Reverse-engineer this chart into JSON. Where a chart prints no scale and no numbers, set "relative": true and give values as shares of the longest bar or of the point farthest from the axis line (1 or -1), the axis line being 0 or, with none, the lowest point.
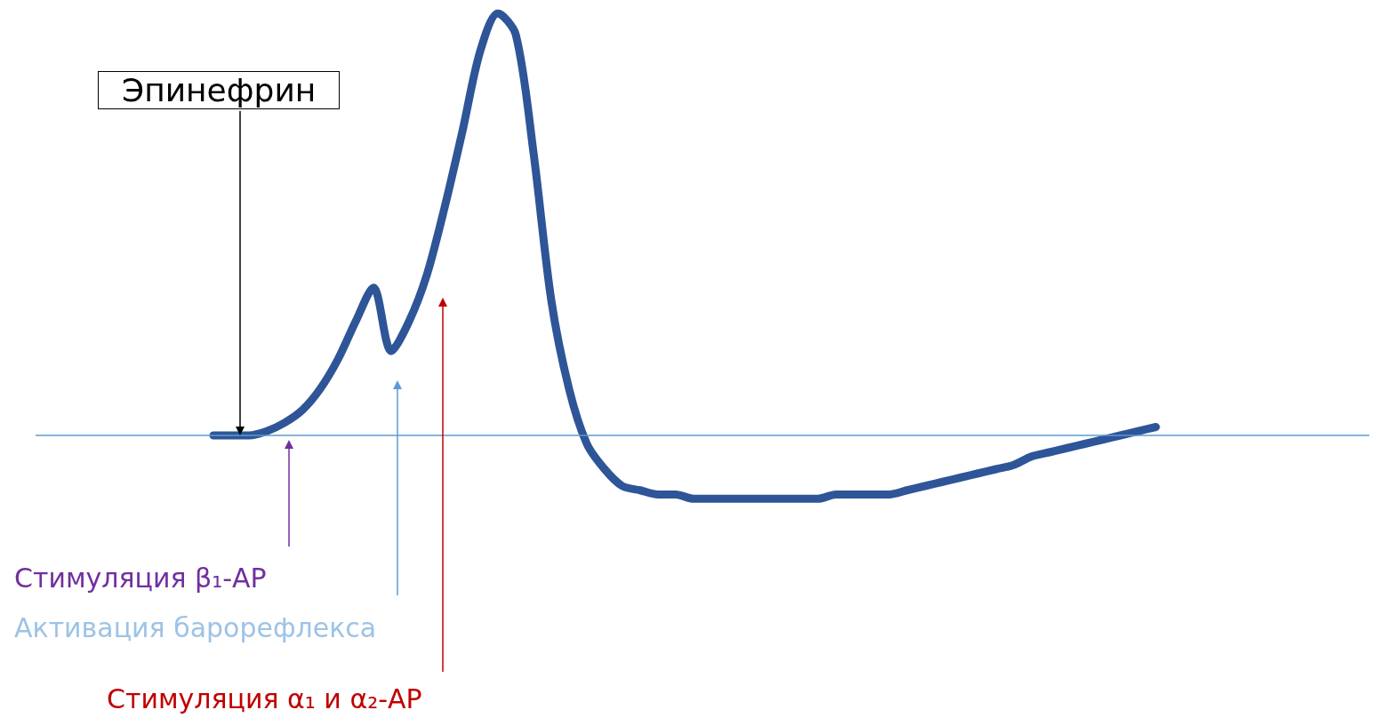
{
  "chart_data": {
    "type": "line",
    "relative": true,
    "grid": false,
    "line_style": "solid",
    "ref_lines": [
      {
        "axis": "y",
        "value": 0,
        "color": "#5b9bd5"
      }
    ],
    "categories": [
      null,
      null,
      null,
      null,
      null,
      null,
      null,
      null,
      null,
      null,
      null,
      null,
      null,
      null,
      null,
      null,
      null,
      null,
      null,
      null,
      null,
      null,
      null,
      null,
      null,
      null,
      null,
      null,
      null,
      null,
      null,
      null,
      null,
      null,
      null,
      null,
      null,
      null,
      null,
      null,
      null,
      null,
      null,
      null,
      null,
      null,
      null,
      null,
      null,
      null,
      null,
      null,
      null,
      null,
      null,
      null,
      null,
      null,
      null,
      null,
      null,
      null,
      null,
      null,
      null,
      null,
      null,
      null,
      null,
      null,
      null,
      null,
      null,
      null,
      null,
      null
    ],
    "series": [
      {
        "color": "#2e5597",
        "values": [
          null,
          null,
          null,
          null,
          null,
          null,
          null,
          null,
          null,
          null,
          0,
          0,
          0,
          0.01,
          0.03,
          0.06,
          0.11,
          0.18,
          0.27,
          0.35,
          0.2,
          0.27,
          0.38,
          0.54,
          0.72,
          0.91,
          1,
          0.95,
          0.67,
          0.32,
          0.11,
          -0.02,
          -0.08,
          -0.12,
          -0.13,
          -0.14,
          -0.14,
          -0.15,
          -0.15,
          -0.15,
          -0.15,
          -0.15,
          -0.15,
          -0.15,
          -0.15,
          -0.14,
          -0.14,
          -0.14,
          -0.14,
          -0.13,
          -0.12,
          -0.11,
          -0.1,
          -0.09,
          -0.08,
          -0.07,
          -0.05,
          -0.04,
          -0.03,
          -0.02,
          -0.01,
          0,
          0.01,
          0.02,
          null,
          null,
          null,
          null,
          null,
          null,
          null,
          null,
          null,
          null,
          null,
          null
        ]
      }
    ],
    "annotations": [
      "Эпинефрин",
      "Стимуляция β₁-АР",
      "Активация барорефлекса",
      "Стимуляция α₁ и α₂-АР"
    ]
  }
}
